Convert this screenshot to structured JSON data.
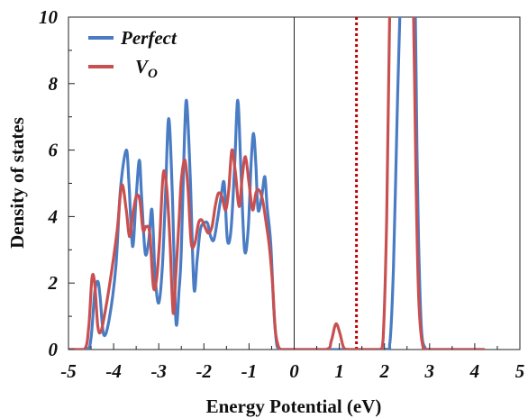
{
  "chart_data": {
    "type": "line",
    "xlabel": "Energy Potential (eV)",
    "ylabel": "Density of states",
    "xlim": [
      -5,
      5
    ],
    "ylim": [
      0,
      10
    ],
    "x_ticks": [
      "-5",
      "-4",
      "-3",
      "-2",
      "-1",
      "0",
      "1",
      "2",
      "3",
      "4",
      "5"
    ],
    "y_ticks": [
      "0",
      "2",
      "4",
      "6",
      "8",
      "10"
    ],
    "grid": false,
    "legend_position": "top-left",
    "reference_lines": [
      {
        "x": 0,
        "style": "solid",
        "color": "#222222"
      },
      {
        "x": 1.38,
        "style": "dotted",
        "color": "#c00000"
      }
    ],
    "series": [
      {
        "name": "Perfect",
        "legend_main": "Perfect",
        "legend_sub": "",
        "color": "#4a7cc4",
        "x": [
          -5.0,
          -4.6,
          -4.5,
          -4.42,
          -4.35,
          -4.3,
          -4.22,
          -4.1,
          -3.95,
          -3.85,
          -3.72,
          -3.66,
          -3.58,
          -3.5,
          -3.43,
          -3.38,
          -3.3,
          -3.22,
          -3.15,
          -3.08,
          -3.0,
          -2.92,
          -2.85,
          -2.78,
          -2.7,
          -2.62,
          -2.55,
          -2.5,
          -2.43,
          -2.38,
          -2.3,
          -2.22,
          -2.15,
          -2.08,
          -2.0,
          -1.92,
          -1.85,
          -1.78,
          -1.7,
          -1.62,
          -1.55,
          -1.48,
          -1.4,
          -1.32,
          -1.25,
          -1.18,
          -1.1,
          -1.02,
          -0.95,
          -0.9,
          -0.85,
          -0.8,
          -0.72,
          -0.65,
          -0.6,
          -0.52,
          -0.45,
          -0.38,
          -0.3,
          -0.22,
          -0.15,
          0.0,
          1.0,
          2.0,
          2.12,
          2.2,
          2.28,
          2.35,
          2.38,
          2.42,
          2.5,
          2.58,
          2.64,
          2.68,
          2.72,
          2.76,
          2.82,
          2.9,
          3.0,
          4.2
        ],
        "values": [
          0.0,
          0.0,
          0.35,
          1.7,
          2.05,
          1.6,
          0.45,
          0.9,
          2.5,
          4.8,
          6.0,
          5.0,
          3.1,
          4.6,
          5.7,
          4.6,
          2.9,
          3.3,
          4.2,
          2.2,
          1.4,
          2.5,
          4.7,
          6.95,
          4.7,
          0.85,
          1.8,
          3.0,
          6.4,
          7.45,
          5.1,
          1.85,
          2.7,
          3.6,
          3.8,
          3.8,
          3.4,
          3.3,
          3.9,
          4.6,
          5.0,
          3.3,
          3.6,
          5.5,
          7.5,
          5.4,
          3.0,
          3.6,
          5.7,
          6.5,
          5.6,
          4.2,
          4.6,
          5.2,
          4.3,
          3.2,
          1.2,
          0.1,
          0.0,
          0.0,
          0.0,
          0.0,
          0.0,
          0.0,
          0.2,
          2.5,
          7.0,
          10.5,
          10.5,
          10.5,
          10.5,
          10.5,
          10.5,
          10.5,
          6.0,
          3.0,
          0.6,
          0.05,
          0.0,
          0.0
        ]
      },
      {
        "name": "VO",
        "legend_main": "V",
        "legend_sub": "O",
        "color": "#c85050",
        "x": [
          -5.0,
          -4.65,
          -4.55,
          -4.48,
          -4.42,
          -4.35,
          -4.28,
          -4.18,
          -4.05,
          -3.92,
          -3.82,
          -3.72,
          -3.65,
          -3.58,
          -3.5,
          -3.42,
          -3.35,
          -3.28,
          -3.2,
          -3.12,
          -3.05,
          -2.98,
          -2.9,
          -2.82,
          -2.75,
          -2.68,
          -2.62,
          -2.55,
          -2.5,
          -2.42,
          -2.35,
          -2.28,
          -2.2,
          -2.12,
          -2.05,
          -1.98,
          -1.9,
          -1.82,
          -1.75,
          -1.68,
          -1.6,
          -1.52,
          -1.45,
          -1.38,
          -1.3,
          -1.22,
          -1.15,
          -1.08,
          -1.0,
          -0.92,
          -0.85,
          -0.78,
          -0.7,
          -0.62,
          -0.55,
          -0.48,
          -0.42,
          -0.35,
          -0.28,
          -0.2,
          0.0,
          0.7,
          0.82,
          0.9,
          0.95,
          1.02,
          1.1,
          1.22,
          1.6,
          1.9,
          1.97,
          2.05,
          2.12,
          2.18,
          2.28,
          2.4,
          2.5,
          2.55,
          2.6,
          2.64,
          2.7,
          2.76,
          2.85,
          3.0,
          4.2
        ],
        "values": [
          0.0,
          0.0,
          0.7,
          2.15,
          2.0,
          0.7,
          0.55,
          1.2,
          2.3,
          3.6,
          4.95,
          4.2,
          3.4,
          4.0,
          4.6,
          4.5,
          3.6,
          3.7,
          3.5,
          1.9,
          2.1,
          3.3,
          5.3,
          4.8,
          3.2,
          1.1,
          2.3,
          3.9,
          5.1,
          5.7,
          4.8,
          3.2,
          3.2,
          3.8,
          3.9,
          3.7,
          3.5,
          3.7,
          4.3,
          4.7,
          4.6,
          4.2,
          4.8,
          6.0,
          5.3,
          4.3,
          5.2,
          5.8,
          5.0,
          4.2,
          4.7,
          4.8,
          4.5,
          3.8,
          3.1,
          2.0,
          0.6,
          0.1,
          0.0,
          0.0,
          0.0,
          0.0,
          0.25,
          0.7,
          0.75,
          0.45,
          0.05,
          0.0,
          0.0,
          0.0,
          0.3,
          4.0,
          10.5,
          10.5,
          10.5,
          10.5,
          10.5,
          10.5,
          10.5,
          10.5,
          5.0,
          1.5,
          0.1,
          0.0,
          0.0
        ]
      }
    ]
  }
}
